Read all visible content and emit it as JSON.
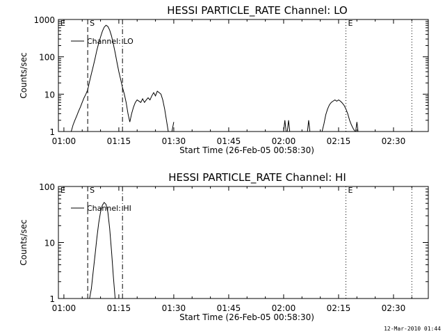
{
  "footer": {
    "timestamp": "12-Mar-2010 01:44"
  },
  "chart_data": [
    {
      "type": "line",
      "title": "HESSI PARTICLE_RATE Channel: LO",
      "xlabel": "Start Time (26-Feb-05 00:58:30)",
      "ylabel": "Counts/sec",
      "y_scale": "log",
      "ylim": [
        1,
        1000
      ],
      "y_ticks": [
        "1",
        "10",
        "100",
        "1000"
      ],
      "xlim": [
        "00:58:30",
        "02:39:30"
      ],
      "x_ticks": [
        "01:00",
        "01:15",
        "01:30",
        "01:45",
        "02:00",
        "02:15",
        "02:30"
      ],
      "legend": {
        "position": "top-left",
        "entries": [
          "Channel: LO"
        ]
      },
      "grid": false,
      "markers": [
        {
          "label": "E",
          "time": "00:58:30",
          "style": "dashed"
        },
        {
          "label": "S",
          "time": "01:06:30",
          "style": "dashed"
        },
        {
          "label": "",
          "time": "01:16:00",
          "style": "dash-dot"
        },
        {
          "label": "E",
          "time": "02:17:00",
          "style": "dotted"
        },
        {
          "label": "",
          "time": "02:35:00",
          "style": "dotted"
        }
      ],
      "series": [
        {
          "name": "Channel: LO",
          "segments": [
            {
              "x": [
                "01:02:00",
                "01:02:30",
                "01:03:00",
                "01:03:30",
                "01:04:00",
                "01:04:30",
                "01:05:00",
                "01:05:30",
                "01:06:00",
                "01:06:30",
                "01:07:00",
                "01:07:30",
                "01:08:00",
                "01:08:30",
                "01:09:00",
                "01:09:30",
                "01:10:00",
                "01:10:30",
                "01:11:00",
                "01:11:30",
                "01:12:00",
                "01:12:30",
                "01:13:00",
                "01:13:30",
                "01:14:00",
                "01:14:30",
                "01:15:00",
                "01:15:30",
                "01:16:00",
                "01:16:30",
                "01:17:00",
                "01:17:30",
                "01:18:00",
                "01:18:30",
                "01:19:00",
                "01:19:30",
                "01:20:00",
                "01:20:30",
                "01:21:00",
                "01:21:30",
                "01:22:00",
                "01:22:30",
                "01:23:00",
                "01:23:30",
                "01:24:00",
                "01:24:30",
                "01:25:00",
                "01:25:30",
                "01:26:00",
                "01:26:30",
                "01:27:00",
                "01:27:30",
                "01:28:00",
                "01:28:30",
                "01:29:00"
              ],
              "y": [
                1,
                1.5,
                2,
                2.6,
                3.5,
                4.5,
                6,
                8,
                10,
                13,
                22,
                35,
                55,
                90,
                150,
                230,
                340,
                480,
                620,
                700,
                650,
                520,
                360,
                220,
                130,
                70,
                40,
                25,
                15,
                10,
                6,
                3,
                1.8,
                3,
                4.5,
                6,
                7,
                6.5,
                6,
                7.5,
                6,
                7,
                8,
                7,
                9,
                11,
                9,
                12,
                11,
                10,
                7,
                4,
                2,
                1,
                1
              ]
            },
            {
              "x": [
                "01:29:30",
                "01:30:00"
              ],
              "y": [
                1,
                1.8
              ]
            },
            {
              "x": [
                "02:00:00",
                "02:00:20",
                "02:00:40"
              ],
              "y": [
                1,
                2,
                1
              ]
            },
            {
              "x": [
                "02:01:00",
                "02:01:20",
                "02:01:40"
              ],
              "y": [
                1,
                2,
                1
              ]
            },
            {
              "x": [
                "02:06:30",
                "02:06:50",
                "02:07:10"
              ],
              "y": [
                1,
                2,
                1
              ]
            },
            {
              "x": [
                "02:10:30",
                "02:11:00",
                "02:11:30",
                "02:12:00",
                "02:12:30",
                "02:13:00",
                "02:13:30",
                "02:14:00",
                "02:14:30",
                "02:15:00",
                "02:15:30",
                "02:16:00",
                "02:16:30",
                "02:17:00",
                "02:17:30",
                "02:18:00",
                "02:18:30",
                "02:19:00",
                "02:19:30"
              ],
              "y": [
                1,
                1.6,
                2.8,
                4,
                5.2,
                6,
                6.5,
                7,
                6.5,
                7,
                6.5,
                5.8,
                5,
                4,
                3,
                2,
                1.5,
                1.2,
                1
              ]
            },
            {
              "x": [
                "02:19:40",
                "02:20:00",
                "02:20:20"
              ],
              "y": [
                1,
                1.8,
                1
              ]
            }
          ]
        }
      ]
    },
    {
      "type": "line",
      "title": "HESSI PARTICLE_RATE Channel: HI",
      "xlabel": "Start Time (26-Feb-05 00:58:30)",
      "ylabel": "Counts/sec",
      "y_scale": "log",
      "ylim": [
        1,
        100
      ],
      "y_ticks": [
        "1",
        "10",
        "100"
      ],
      "xlim": [
        "00:58:30",
        "02:39:30"
      ],
      "x_ticks": [
        "01:00",
        "01:15",
        "01:30",
        "01:45",
        "02:00",
        "02:15",
        "02:30"
      ],
      "legend": {
        "position": "top-left",
        "entries": [
          "Channel: HI"
        ]
      },
      "grid": false,
      "markers": [
        {
          "label": "E",
          "time": "00:58:30",
          "style": "dashed"
        },
        {
          "label": "S",
          "time": "01:06:30",
          "style": "dashed"
        },
        {
          "label": "",
          "time": "01:16:00",
          "style": "dash-dot"
        },
        {
          "label": "E",
          "time": "02:17:00",
          "style": "dotted"
        },
        {
          "label": "",
          "time": "02:35:00",
          "style": "dotted"
        }
      ],
      "series": [
        {
          "name": "Channel: HI",
          "segments": [
            {
              "x": [
                "01:07:00",
                "01:07:30",
                "01:08:00",
                "01:08:30",
                "01:09:00",
                "01:09:30",
                "01:10:00",
                "01:10:30",
                "01:11:00",
                "01:11:30",
                "01:12:00",
                "01:12:30",
                "01:13:00",
                "01:13:30",
                "01:14:00"
              ],
              "y": [
                1,
                1.5,
                3,
                6,
                12,
                22,
                35,
                46,
                52,
                48,
                35,
                18,
                7,
                2.5,
                1
              ]
            }
          ]
        }
      ]
    }
  ]
}
